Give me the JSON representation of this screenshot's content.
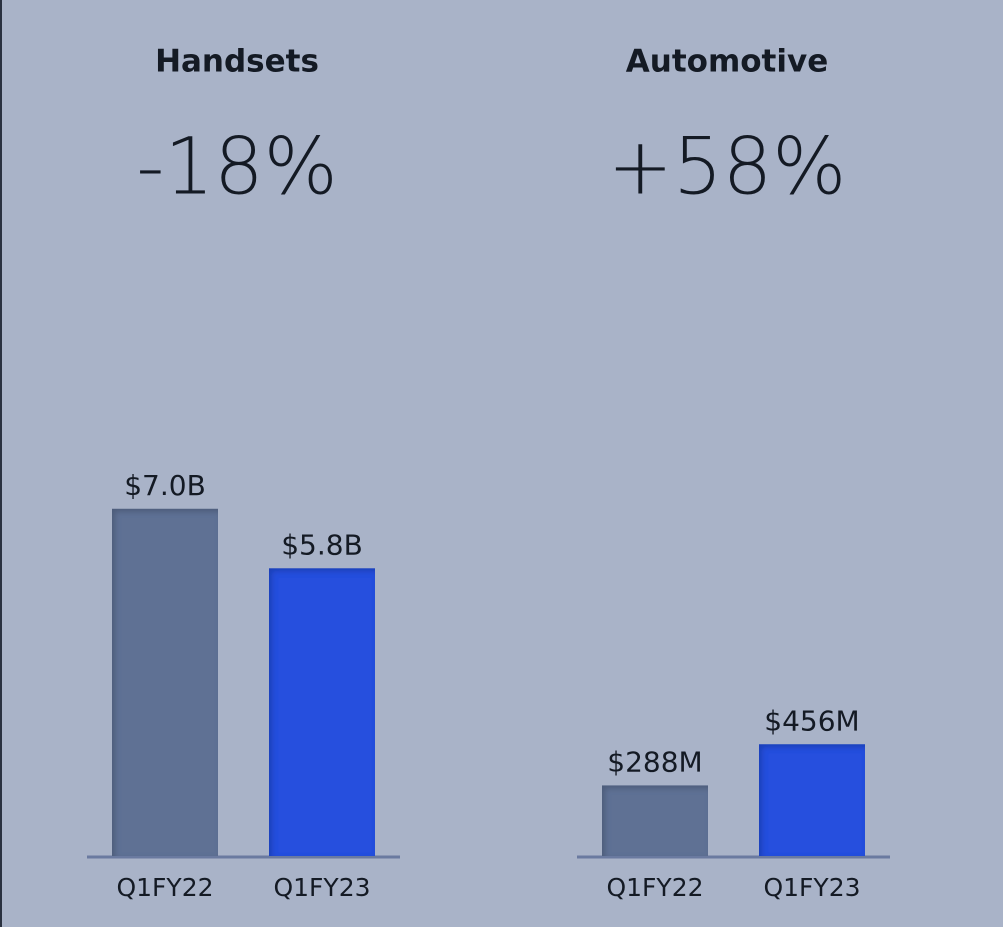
{
  "chart_data": [
    {
      "type": "bar",
      "title": "Handsets",
      "subtitle": "-18%",
      "categories": [
        "Q1FY22",
        "Q1FY23"
      ],
      "values": [
        7.0,
        5.8
      ],
      "value_labels": [
        "$7.0B",
        "$5.8B"
      ],
      "colors": [
        "#5f7194",
        "#2750de"
      ]
    },
    {
      "type": "bar",
      "title": "Automotive",
      "subtitle": "+58%",
      "categories": [
        "Q1FY22",
        "Q1FY23"
      ],
      "values": [
        288,
        456
      ],
      "value_labels": [
        "$288M",
        "$456M"
      ],
      "colors": [
        "#5f7194",
        "#2750de"
      ]
    }
  ]
}
